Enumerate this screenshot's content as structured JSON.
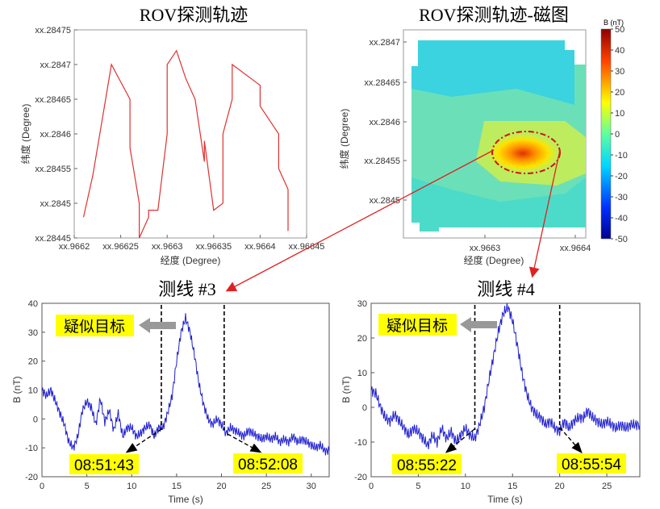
{
  "chart_data": [
    {
      "type": "line",
      "title": "ROV探测轨迹",
      "xlabel": "经度 (Degree)",
      "ylabel": "纬度 (Degree)",
      "xlim": [
        0.9662,
        0.96645
      ],
      "ylim": [
        0.28445,
        0.28475
      ],
      "x_prefix": "xx",
      "x_ticks": [
        "xx.9662",
        "xx.96625",
        "xx.9663",
        "xx.96635",
        "xx.9664",
        "xx.96645"
      ],
      "y_ticks": [
        "xx.28445",
        "xx.2845",
        "xx.28455",
        "xx.2846",
        "xx.28465",
        "xx.2847",
        "xx.28475"
      ],
      "series": [
        {
          "color": "#e03030",
          "x": [
            0.96621,
            0.96622,
            0.96623,
            0.96624,
            0.96626,
            0.96626,
            0.96627,
            0.96627,
            0.96628,
            0.96628,
            0.96629,
            0.9663,
            0.9663,
            0.96631,
            0.96632,
            0.96633,
            0.96633,
            0.96634,
            0.96634,
            0.96635,
            0.96636,
            0.96636,
            0.96637,
            0.96637,
            0.96637,
            0.96639,
            0.9664,
            0.9664,
            0.96641,
            0.96642,
            0.96642,
            0.96643,
            0.96643,
            0.96643,
            0.96643
          ],
          "y": [
            0.28448,
            0.28454,
            0.28462,
            0.2847,
            0.28465,
            0.28458,
            0.2845,
            0.28445,
            0.28448,
            0.28449,
            0.28449,
            0.2846,
            0.2847,
            0.28472,
            0.28468,
            0.28465,
            0.28465,
            0.28456,
            0.28459,
            0.28449,
            0.2845,
            0.2846,
            0.28465,
            0.28465,
            0.2847,
            0.28468,
            0.28467,
            0.28464,
            0.28462,
            0.2846,
            0.28455,
            0.28452,
            0.28449,
            0.28447,
            0.28446
          ]
        }
      ]
    },
    {
      "type": "heatmap",
      "title": "ROV探测轨迹-磁图",
      "xlabel": "经度 (Degree)",
      "ylabel": "纬度 (Degree)",
      "x_ticks": [
        "xx.9663",
        "xx.9664"
      ],
      "y_ticks": [
        "xx.2845",
        "xx.28455",
        "xx.2846",
        "xx.28465",
        "xx.2847"
      ],
      "colorbar_label": "B (nT)",
      "colorbar_ticks": [
        "50",
        "40",
        "30",
        "20",
        "10",
        "0",
        "-10",
        "-20",
        "-30",
        "-40",
        "-50"
      ],
      "clim": [
        -50,
        50
      ],
      "anomaly_peak": 25
    },
    {
      "type": "line",
      "title": "测线 #3",
      "xlabel": "Time (s)",
      "ylabel": "B (nT)",
      "xlim": [
        0,
        32
      ],
      "ylim": [
        -20,
        40
      ],
      "x_ticks": [
        "0",
        "5",
        "10",
        "15",
        "20",
        "25",
        "30"
      ],
      "y_ticks": [
        "40",
        "30",
        "20",
        "10",
        "0",
        "-10",
        "-20"
      ],
      "marker_lines": [
        13.3,
        20.3
      ],
      "annotations": [
        {
          "text": "疑似目标"
        },
        {
          "text": "08:51:43"
        },
        {
          "text": "08:52:08"
        }
      ],
      "series": [
        {
          "color": "#2020d0",
          "x": [
            0,
            0.5,
            1,
            1.5,
            2,
            2.5,
            3,
            3.5,
            4,
            4.5,
            5,
            5.5,
            6,
            6.5,
            7,
            7.5,
            8,
            8.5,
            9,
            9.5,
            10,
            10.5,
            11,
            11.5,
            12,
            12.5,
            13,
            13.5,
            14,
            14.5,
            15,
            15.5,
            16,
            16.5,
            17,
            17.5,
            18,
            18.5,
            19,
            19.5,
            20,
            20.5,
            21,
            21.5,
            22,
            22.5,
            23,
            23.5,
            24,
            24.5,
            25,
            25.5,
            26,
            26.5,
            27,
            27.5,
            28,
            28.5,
            29,
            29.5,
            30,
            30.5,
            31,
            31.5,
            32
          ],
          "y": [
            10,
            8,
            10,
            6,
            2,
            -2,
            -8,
            -10,
            -6,
            3,
            6,
            4,
            -2,
            7,
            -1,
            3,
            -4,
            2,
            -6,
            -3,
            -3,
            -6,
            -5,
            -3,
            -2,
            -6,
            -3,
            -3,
            2,
            8,
            20,
            30,
            35,
            30,
            22,
            12,
            5,
            0,
            -2,
            0,
            -2,
            -5,
            -3,
            -4,
            -5,
            -6,
            -4,
            -5,
            -6,
            -7,
            -6,
            -7,
            -6,
            -8,
            -7,
            -8,
            -6,
            -8,
            -7,
            -8,
            -9,
            -10,
            -9,
            -11,
            -11
          ]
        }
      ]
    },
    {
      "type": "line",
      "title": "测线 #4",
      "xlabel": "Time (s)",
      "ylabel": "B (nT)",
      "xlim": [
        0,
        28.5
      ],
      "ylim": [
        -20,
        30
      ],
      "x_ticks": [
        "0",
        "5",
        "10",
        "15",
        "20",
        "25"
      ],
      "y_ticks": [
        "30",
        "20",
        "10",
        "0",
        "-10",
        "-20"
      ],
      "marker_lines": [
        11,
        20
      ],
      "annotations": [
        {
          "text": "疑似目标"
        },
        {
          "text": "08:55:22"
        },
        {
          "text": "08:55:54"
        }
      ],
      "series": [
        {
          "color": "#2020d0",
          "x": [
            0,
            0.5,
            1,
            1.5,
            2,
            2.5,
            3,
            3.5,
            4,
            4.5,
            5,
            5.5,
            6,
            6.5,
            7,
            7.5,
            8,
            8.5,
            9,
            9.5,
            10,
            10.5,
            11,
            11.5,
            12,
            12.5,
            13,
            13.5,
            14,
            14.5,
            15,
            15.5,
            16,
            16.5,
            17,
            17.5,
            18,
            18.5,
            19,
            19.5,
            20,
            20.5,
            21,
            21.5,
            22,
            22.5,
            23,
            23.5,
            24,
            24.5,
            25,
            25.5,
            26,
            26.5,
            27,
            27.5,
            28,
            28.5
          ],
          "y": [
            5,
            4,
            0,
            -3,
            -4,
            -2,
            -4,
            -6,
            -8,
            -6,
            -7,
            -9,
            -11,
            -8,
            -10,
            -6,
            -9,
            -7,
            -10,
            -8,
            -6,
            -8,
            -9,
            -5,
            0,
            8,
            15,
            22,
            27,
            29,
            25,
            18,
            10,
            4,
            0,
            -2,
            -3,
            -5,
            -4,
            -6,
            -7,
            -4,
            -6,
            -4,
            -3,
            -3,
            -1,
            -3,
            -4,
            -5,
            -4,
            -5,
            -6,
            -5,
            -6,
            -5,
            -5,
            -5
          ]
        }
      ]
    }
  ]
}
